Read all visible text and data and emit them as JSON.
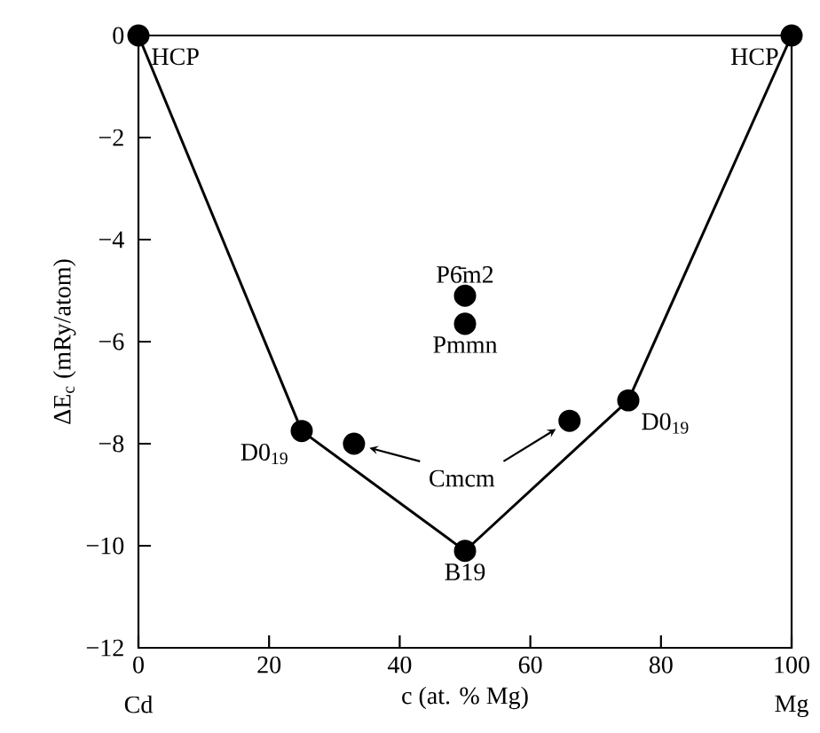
{
  "chart_data": {
    "type": "line",
    "xlabel": "c (at. % Mg)",
    "ylabel": "ΔE$_{c}$ (mRy/atom)",
    "xlim": [
      0,
      100
    ],
    "ylim": [
      -12,
      0
    ],
    "xticks": [
      0,
      20,
      40,
      60,
      80,
      100
    ],
    "yticks": [
      {
        "value": -12,
        "label": "−12"
      },
      {
        "value": -10,
        "label": "−10"
      },
      {
        "value": -8,
        "label": "−8"
      },
      {
        "value": -6,
        "label": "−6"
      },
      {
        "value": -4,
        "label": "−4"
      },
      {
        "value": -2,
        "label": "−2"
      },
      0
    ],
    "marker": "circle",
    "series": [
      {
        "x": [
          0,
          25,
          50,
          75,
          100
        ],
        "values": [
          0,
          -7.75,
          -10.1,
          -7.15,
          0
        ],
        "color": "#000000"
      },
      {
        "type": "scatter",
        "name": "Cmcm",
        "x": [
          33,
          66
        ],
        "values": [
          -8.0,
          -7.55
        ],
        "color": "#000000"
      },
      {
        "type": "scatter",
        "x": [
          50,
          50
        ],
        "values": [
          -5.1,
          -5.65
        ],
        "color": "#000000"
      }
    ],
    "annotations": [
      {
        "text": "HCP",
        "x": 0,
        "y": 0
      },
      {
        "text": "HCP",
        "x": 100,
        "y": 0
      },
      {
        "text": "D0$_{19}$",
        "x": 25,
        "y": -7.75
      },
      {
        "text": "D0$_{19}$",
        "x": 75,
        "y": -7.15
      },
      {
        "text": "B19",
        "x": 50,
        "y": -10.1
      },
      {
        "text": "P6̄m2",
        "x": 50,
        "y": -5.1
      },
      {
        "text": "Pmmn",
        "x": 50,
        "y": -5.65
      },
      "Cd",
      "Mg"
    ]
  }
}
